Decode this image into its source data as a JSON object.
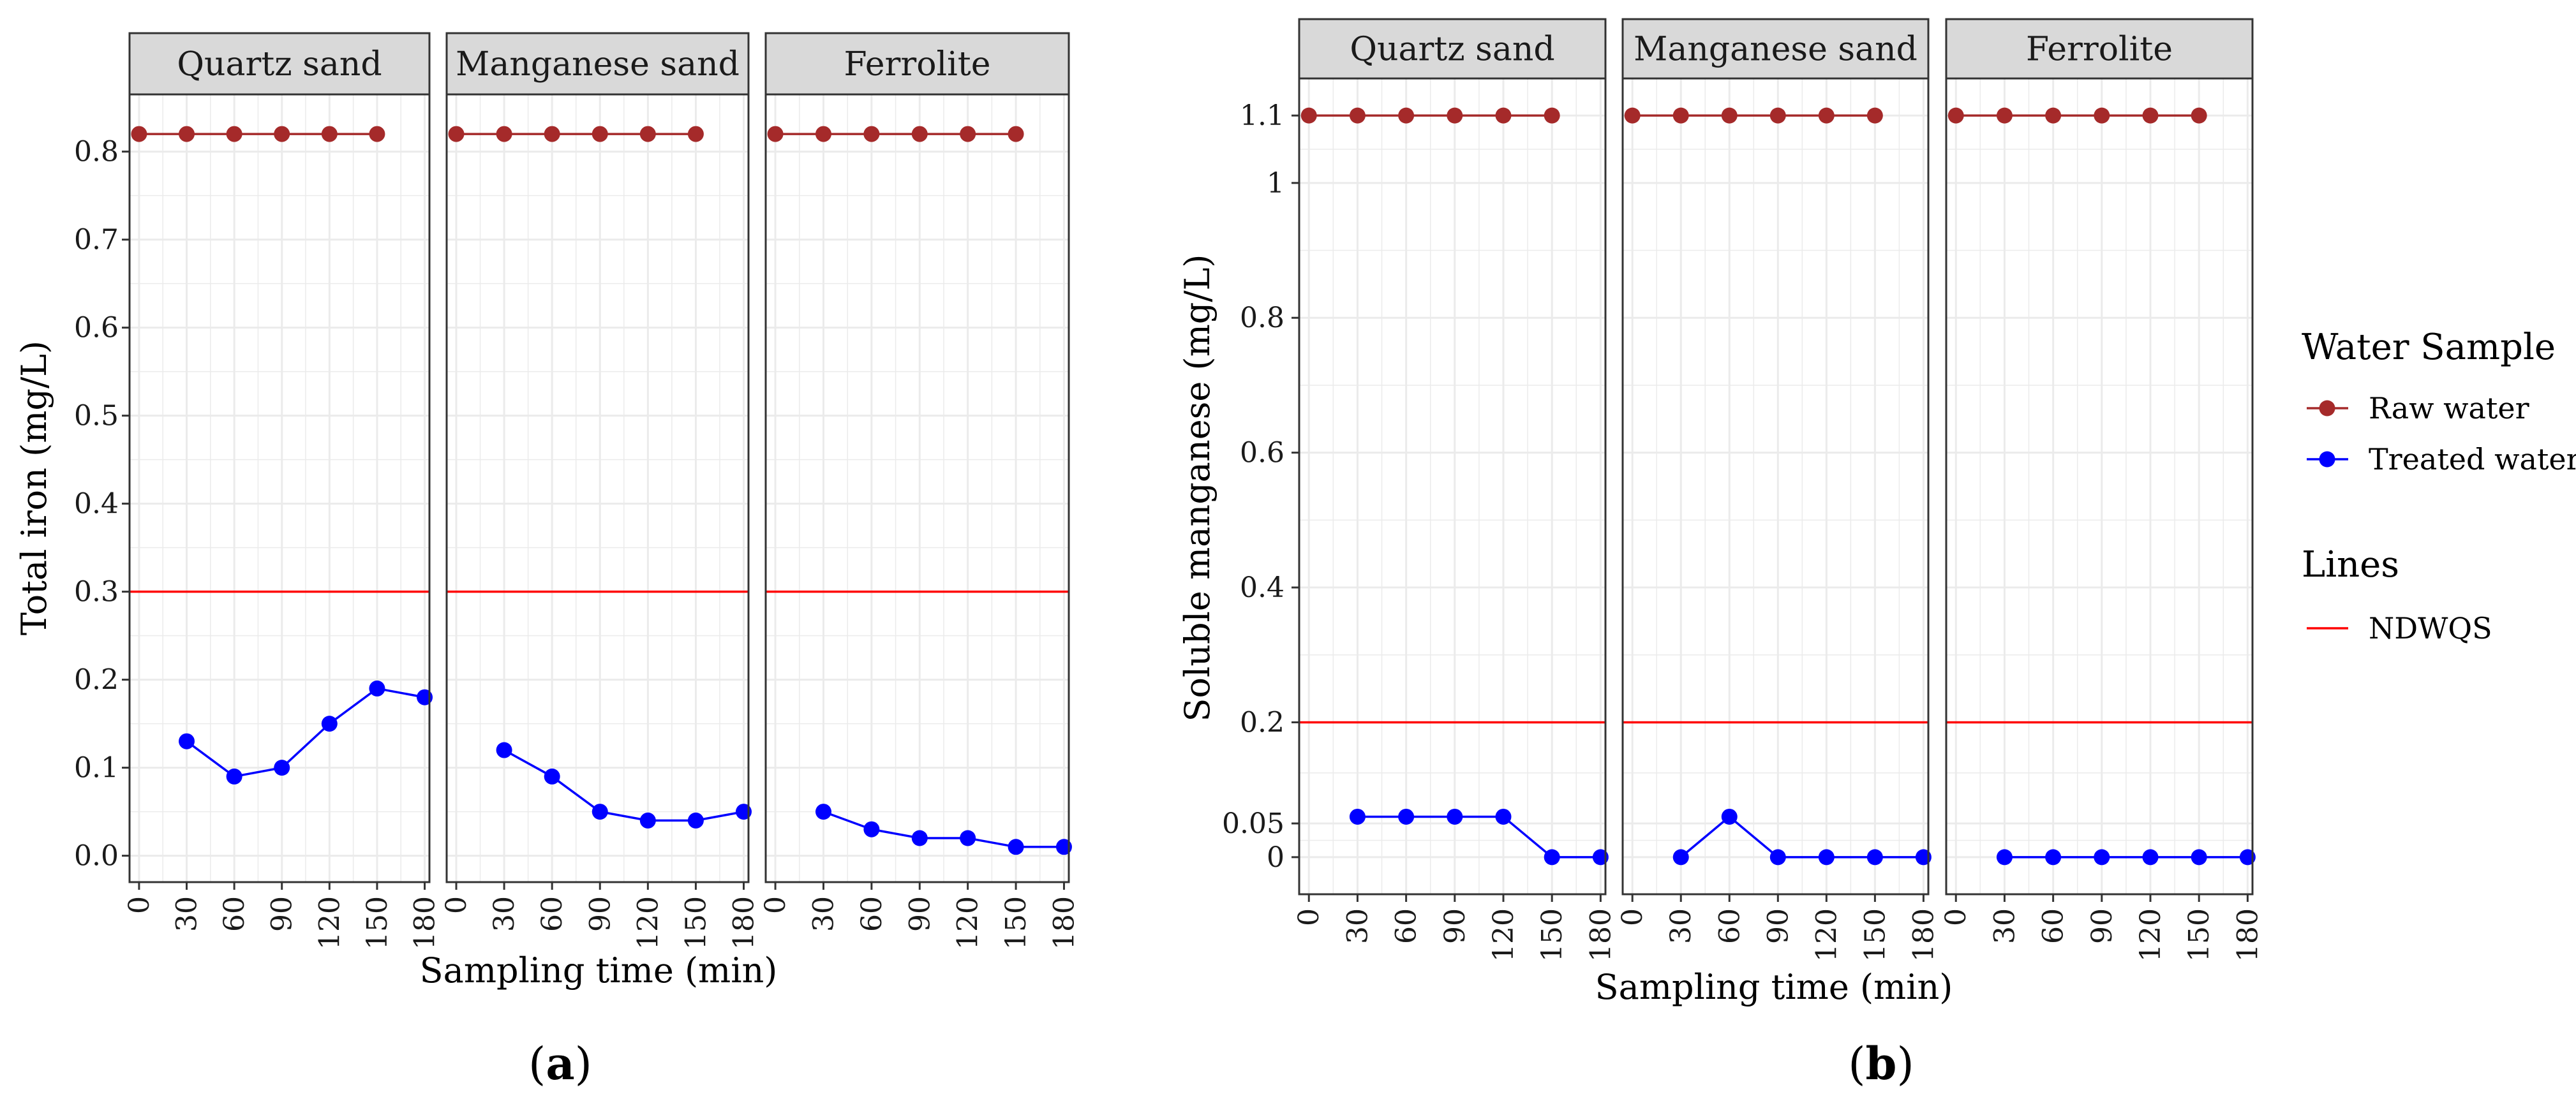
{
  "colors": {
    "raw": "#a52a2a",
    "treated": "#0000ff",
    "ndwqs": "#ff0000",
    "strip_bg": "#d9d9d9",
    "grid": "#ebebeb"
  },
  "legend": {
    "sample_title": "Water Sample",
    "raw_label": "Raw water",
    "treated_label": "Treated water",
    "lines_title": "Lines",
    "ndwqs_label": "NDWQS"
  },
  "chart_data": [
    {
      "type": "line",
      "panel_label": "a",
      "ylabel": "Total iron (mg/L)",
      "xlabel": "Sampling time (min)",
      "ylim": [
        -0.03,
        0.865
      ],
      "y_ticks": [
        0.0,
        0.1,
        0.2,
        0.3,
        0.4,
        0.5,
        0.6,
        0.7,
        0.8
      ],
      "y_tick_labels": [
        "0.0",
        "0.1",
        "0.2",
        "0.3",
        "0.4",
        "0.5",
        "0.6",
        "0.7",
        "0.8"
      ],
      "xlim": [
        -6,
        183
      ],
      "x_ticks": [
        0,
        30,
        60,
        90,
        120,
        150,
        180
      ],
      "x_tick_labels": [
        "0",
        "30",
        "60",
        "90",
        "120",
        "150",
        "180"
      ],
      "ndwqs": 0.3,
      "facets": [
        {
          "name": "Quartz sand",
          "series": [
            {
              "name": "Raw water",
              "x": [
                0,
                30,
                60,
                90,
                120,
                150
              ],
              "values": [
                0.82,
                0.82,
                0.82,
                0.82,
                0.82,
                0.82
              ]
            },
            {
              "name": "Treated water",
              "x": [
                30,
                60,
                90,
                120,
                150,
                180
              ],
              "values": [
                0.13,
                0.09,
                0.1,
                0.15,
                0.19,
                0.18
              ]
            }
          ]
        },
        {
          "name": "Manganese sand",
          "series": [
            {
              "name": "Raw water",
              "x": [
                0,
                30,
                60,
                90,
                120,
                150
              ],
              "values": [
                0.82,
                0.82,
                0.82,
                0.82,
                0.82,
                0.82
              ]
            },
            {
              "name": "Treated water",
              "x": [
                30,
                60,
                90,
                120,
                150,
                180
              ],
              "values": [
                0.12,
                0.09,
                0.05,
                0.04,
                0.04,
                0.05
              ]
            }
          ]
        },
        {
          "name": "Ferrolite",
          "series": [
            {
              "name": "Raw water",
              "x": [
                0,
                30,
                60,
                90,
                120,
                150
              ],
              "values": [
                0.82,
                0.82,
                0.82,
                0.82,
                0.82,
                0.82
              ]
            },
            {
              "name": "Treated water",
              "x": [
                30,
                60,
                90,
                120,
                150,
                180
              ],
              "values": [
                0.05,
                0.03,
                0.02,
                0.02,
                0.01,
                0.01
              ]
            }
          ]
        }
      ]
    },
    {
      "type": "line",
      "panel_label": "b",
      "ylabel": "Soluble manganese (mg/L)",
      "xlabel": "Sampling time (min)",
      "ylim": [
        -0.055,
        1.155
      ],
      "y_ticks": [
        0,
        0.05,
        0.2,
        0.4,
        0.6,
        0.8,
        1.0,
        1.1
      ],
      "y_tick_labels": [
        "0",
        "0.05",
        "0.2",
        "0.4",
        "0.6",
        "0.8",
        "1",
        "1.1"
      ],
      "xlim": [
        -6,
        183
      ],
      "x_ticks": [
        0,
        30,
        60,
        90,
        120,
        150,
        180
      ],
      "x_tick_labels": [
        "0",
        "30",
        "60",
        "90",
        "120",
        "150",
        "180"
      ],
      "ndwqs": 0.2,
      "facets": [
        {
          "name": "Quartz sand",
          "series": [
            {
              "name": "Raw water",
              "x": [
                0,
                30,
                60,
                90,
                120,
                150
              ],
              "values": [
                1.1,
                1.1,
                1.1,
                1.1,
                1.1,
                1.1
              ]
            },
            {
              "name": "Treated water",
              "x": [
                30,
                60,
                90,
                120,
                150,
                180
              ],
              "values": [
                0.06,
                0.06,
                0.06,
                0.06,
                0.0,
                0.0
              ]
            }
          ]
        },
        {
          "name": "Manganese sand",
          "series": [
            {
              "name": "Raw water",
              "x": [
                0,
                30,
                60,
                90,
                120,
                150
              ],
              "values": [
                1.1,
                1.1,
                1.1,
                1.1,
                1.1,
                1.1
              ]
            },
            {
              "name": "Treated water",
              "x": [
                30,
                60,
                90,
                120,
                150,
                180
              ],
              "values": [
                0.0,
                0.06,
                0.0,
                0.0,
                0.0,
                0.0
              ]
            }
          ]
        },
        {
          "name": "Ferrolite",
          "series": [
            {
              "name": "Raw water",
              "x": [
                0,
                30,
                60,
                90,
                120,
                150
              ],
              "values": [
                1.1,
                1.1,
                1.1,
                1.1,
                1.1,
                1.1
              ]
            },
            {
              "name": "Treated water",
              "x": [
                30,
                60,
                90,
                120,
                150,
                180
              ],
              "values": [
                0.0,
                0.0,
                0.0,
                0.0,
                0.0,
                0.0
              ]
            }
          ]
        }
      ]
    }
  ]
}
